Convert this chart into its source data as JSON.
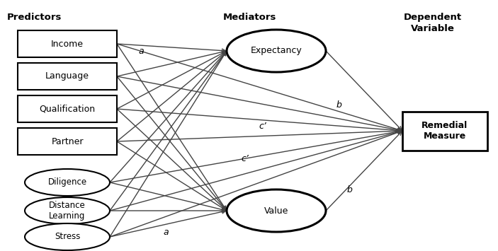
{
  "predictors_rect": [
    "Income",
    "Language",
    "Qualification",
    "Partner"
  ],
  "predictors_oval": [
    "Diligence",
    "Distance\nLearning",
    "Stress"
  ],
  "mediators": [
    "Expectancy",
    "Value"
  ],
  "dependent": "Remedial\nMeasure",
  "section_labels": [
    "Predictors",
    "Mediators",
    "Dependent\nVariable"
  ],
  "path_labels": {
    "a_top": "a",
    "a_bottom": "a",
    "b_top": "b",
    "b_bottom": "b",
    "c_prime_top": "c’",
    "c_prime_bottom": "c’"
  },
  "colors": {
    "box_edge": "#000000",
    "box_fill": "#ffffff",
    "arrow": "#444444",
    "text": "#000000",
    "header_text": "#000000"
  },
  "figsize": [
    7.03,
    3.55
  ],
  "dpi": 100
}
